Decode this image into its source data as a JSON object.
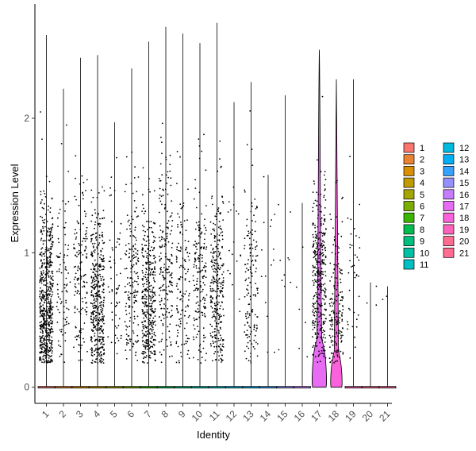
{
  "chart_data": {
    "type": "violin",
    "title": "",
    "xlabel": "Identity",
    "ylabel": "Expression Level",
    "ylim": [
      -0.12,
      2.85
    ],
    "yticks": [
      0,
      1,
      2
    ],
    "categories": [
      "1",
      "2",
      "3",
      "4",
      "5",
      "6",
      "7",
      "8",
      "9",
      "10",
      "11",
      "12",
      "13",
      "14",
      "15",
      "16",
      "17",
      "18",
      "19",
      "20",
      "21"
    ],
    "colors": [
      "#F8766D",
      "#EA8331",
      "#D89000",
      "#C09B00",
      "#A3A500",
      "#7CAE00",
      "#39B600",
      "#00BB4E",
      "#00BF7D",
      "#00C1A3",
      "#00BFC4",
      "#00BAE0",
      "#00B0F6",
      "#35A2FF",
      "#9590FF",
      "#C77CFF",
      "#E76BF3",
      "#FA62DB",
      "#FF62BC",
      "#FF6C91",
      "#FF6C91"
    ],
    "max_values": [
      2.62,
      2.22,
      2.45,
      2.47,
      1.97,
      2.37,
      2.57,
      2.68,
      2.63,
      2.56,
      2.71,
      2.12,
      2.27,
      1.58,
      2.17,
      1.37,
      2.51,
      2.29,
      2.29,
      0.78,
      0.75
    ],
    "point_counts": [
      600,
      90,
      150,
      420,
      60,
      170,
      380,
      200,
      130,
      170,
      290,
      18,
      150,
      15,
      10,
      6,
      360,
      170,
      40,
      3,
      2
    ],
    "point_center": [
      0.6,
      0.75,
      0.8,
      0.6,
      0.8,
      0.8,
      0.6,
      0.9,
      0.8,
      0.8,
      0.7,
      1.0,
      0.7,
      0.9,
      0.9,
      0.8,
      0.8,
      0.6,
      0.8,
      0.7,
      0.6
    ],
    "violin_widths": [
      0.02,
      0.02,
      0.02,
      0.02,
      0.02,
      0.02,
      0.02,
      0.02,
      0.02,
      0.02,
      0.02,
      0.02,
      0.02,
      0.02,
      0.02,
      0.02,
      0.45,
      0.36,
      0.02,
      0.02,
      0.02
    ],
    "legend": {
      "position": "right",
      "columns": 2,
      "entries": [
        "1",
        "2",
        "3",
        "4",
        "5",
        "6",
        "7",
        "8",
        "9",
        "10",
        "11",
        "12",
        "13",
        "14",
        "15",
        "16",
        "17",
        "18",
        "19",
        "20",
        "21"
      ]
    },
    "grid": false
  }
}
